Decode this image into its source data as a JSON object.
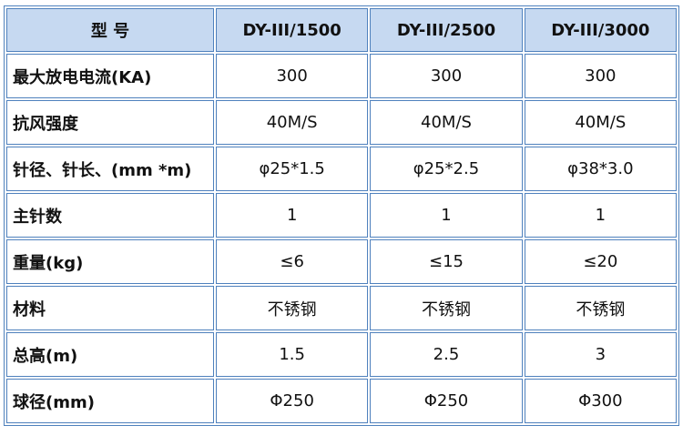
{
  "table": {
    "header": [
      "型 号",
      "DY-III/1500",
      "DY-III/2500",
      "DY-III/3000"
    ],
    "rows": [
      [
        "最大放电电流(KA)",
        "300",
        "300",
        "300"
      ],
      [
        "抗风强度",
        "40M/S",
        "40M/S",
        "40M/S"
      ],
      [
        "针径、针长、(mm *m)",
        "φ25*1.5",
        "φ25*2.5",
        "φ38*3.0"
      ],
      [
        "主针数",
        "1",
        "1",
        "1"
      ],
      [
        "重量(kg)",
        "≤6",
        "≤15",
        "≤20"
      ],
      [
        "材料",
        "不锈钢",
        "不锈钢",
        "不锈钢"
      ],
      [
        "总高(m)",
        "1.5",
        "2.5",
        "3"
      ],
      [
        "球径(mm)",
        "Φ250",
        "Φ250",
        "Φ300"
      ]
    ]
  }
}
